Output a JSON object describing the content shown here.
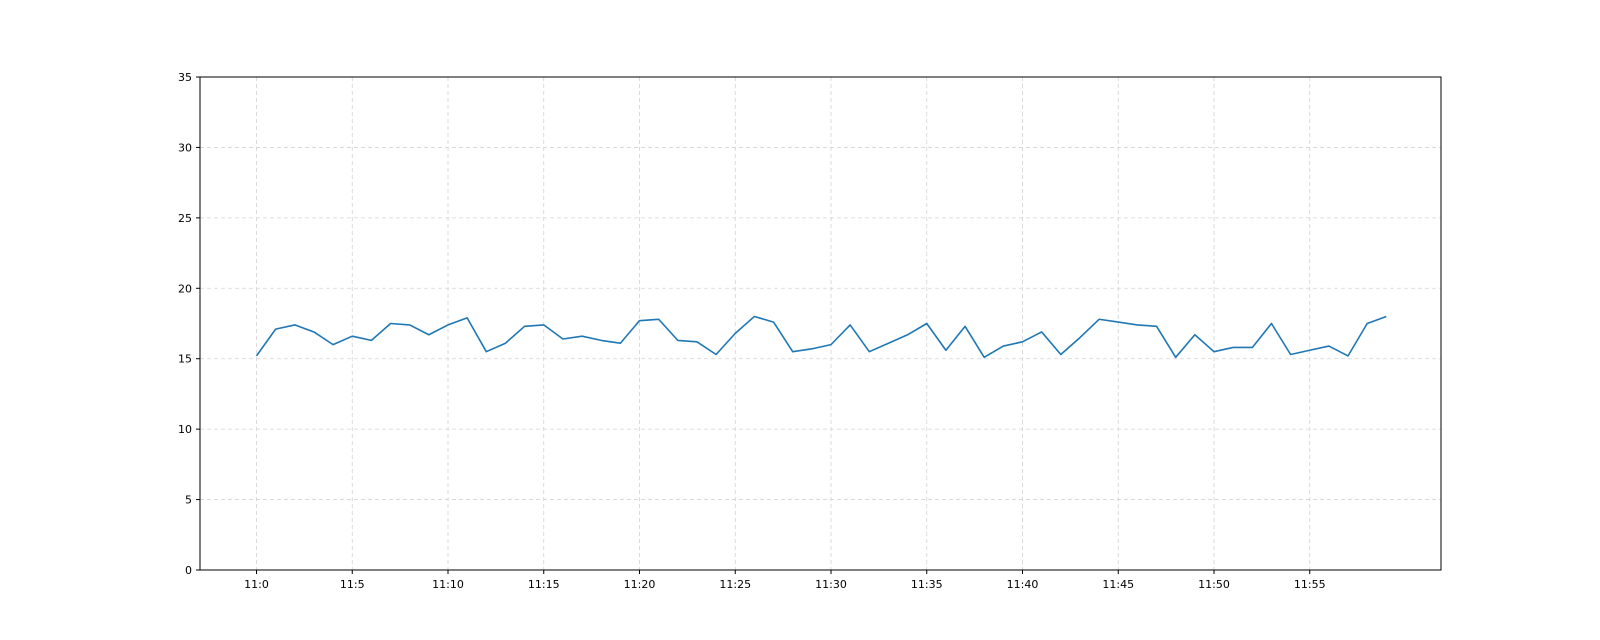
{
  "chart_data": {
    "type": "line",
    "title": "",
    "xlabel": "",
    "ylabel": "",
    "x": [
      "11:0",
      "11:1",
      "11:2",
      "11:3",
      "11:4",
      "11:5",
      "11:6",
      "11:7",
      "11:8",
      "11:9",
      "11:10",
      "11:11",
      "11:12",
      "11:13",
      "11:14",
      "11:15",
      "11:16",
      "11:17",
      "11:18",
      "11:19",
      "11:20",
      "11:21",
      "11:22",
      "11:23",
      "11:24",
      "11:25",
      "11:26",
      "11:27",
      "11:28",
      "11:29",
      "11:30",
      "11:31",
      "11:32",
      "11:33",
      "11:34",
      "11:35",
      "11:36",
      "11:37",
      "11:38",
      "11:39",
      "11:40",
      "11:41",
      "11:42",
      "11:43",
      "11:44",
      "11:45",
      "11:46",
      "11:47",
      "11:48",
      "11:49",
      "11:50",
      "11:51",
      "11:52",
      "11:53",
      "11:54",
      "11:55",
      "11:56",
      "11:57",
      "11:58",
      "11:59"
    ],
    "xtick_labels": [
      "11:0",
      "11:5",
      "11:10",
      "11:15",
      "11:20",
      "11:25",
      "11:30",
      "11:35",
      "11:40",
      "11:45",
      "11:50",
      "11:55"
    ],
    "series": [
      {
        "values": [
          15.2,
          17.1,
          17.4,
          16.9,
          16.0,
          16.6,
          16.3,
          17.5,
          17.4,
          16.7,
          17.4,
          17.9,
          15.5,
          16.1,
          17.3,
          17.4,
          16.4,
          16.6,
          16.3,
          16.1,
          17.7,
          17.8,
          16.3,
          16.2,
          15.3,
          16.8,
          18.0,
          17.6,
          15.5,
          15.7,
          16.0,
          17.4,
          15.5,
          16.1,
          16.7,
          17.5,
          15.6,
          17.3,
          15.1,
          15.9,
          16.2,
          16.9,
          15.3,
          16.5,
          17.8,
          17.6,
          17.4,
          17.3,
          15.1,
          16.7,
          15.5,
          15.8,
          15.8,
          17.5,
          15.3,
          15.6,
          15.9,
          15.2,
          17.5,
          18.0
        ],
        "color": "#1f77b4"
      }
    ],
    "ylim": [
      0,
      35
    ],
    "yticks": [
      0,
      5,
      10,
      15,
      20,
      25,
      30,
      35
    ],
    "grid": true,
    "legend": "none"
  }
}
